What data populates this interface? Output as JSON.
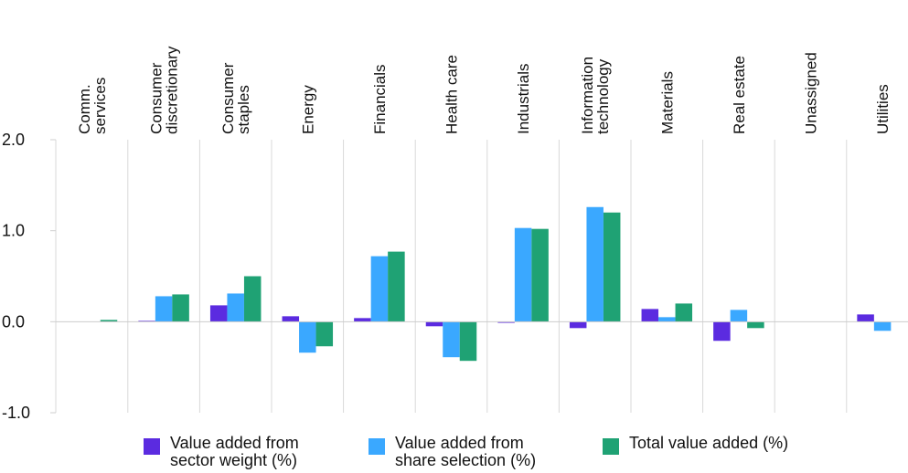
{
  "chart_data": {
    "type": "bar",
    "categories": [
      [
        "Comm.",
        "services"
      ],
      [
        "Consumer",
        "discretionary"
      ],
      [
        "Consumer",
        "staples"
      ],
      [
        "Energy"
      ],
      [
        "Financials"
      ],
      [
        "Health care"
      ],
      [
        "Industrials"
      ],
      [
        "Information",
        "technology"
      ],
      [
        "Materials"
      ],
      [
        "Real estate"
      ],
      [
        "Unassigned"
      ],
      [
        "Utilities"
      ]
    ],
    "series": [
      {
        "name": "Value added from sector weight (%)",
        "color": "#5b2be0",
        "values": [
          0,
          0.01,
          0.18,
          0.06,
          0.04,
          -0.05,
          -0.01,
          -0.07,
          0.14,
          -0.21,
          0,
          0.08
        ]
      },
      {
        "name": "Value added from share selection (%)",
        "color": "#3aa8ff",
        "values": [
          0,
          0.28,
          0.31,
          -0.34,
          0.72,
          -0.39,
          1.03,
          1.26,
          0.05,
          0.13,
          0,
          -0.1
        ]
      },
      {
        "name": "Total value added (%)",
        "color": "#1fa274",
        "values": [
          0.02,
          0.3,
          0.5,
          -0.27,
          0.77,
          -0.43,
          1.02,
          1.2,
          0.2,
          -0.07,
          0,
          0
        ]
      }
    ],
    "y_ticks": [
      "2.0",
      "1.0",
      "0.0",
      "-1.0"
    ],
    "ylim": [
      -1.0,
      2.0
    ],
    "xlabel": "",
    "ylabel": "",
    "legend_position": "bottom",
    "grid": "vertical separators"
  },
  "legend": {
    "items": [
      {
        "lines": [
          "Value added from",
          "sector weight (%)"
        ],
        "color": "#5b2be0"
      },
      {
        "lines": [
          "Value added from",
          "share selection (%)"
        ],
        "color": "#3aa8ff"
      },
      {
        "lines": [
          "Total value added (%)"
        ],
        "color": "#1fa274"
      }
    ]
  }
}
